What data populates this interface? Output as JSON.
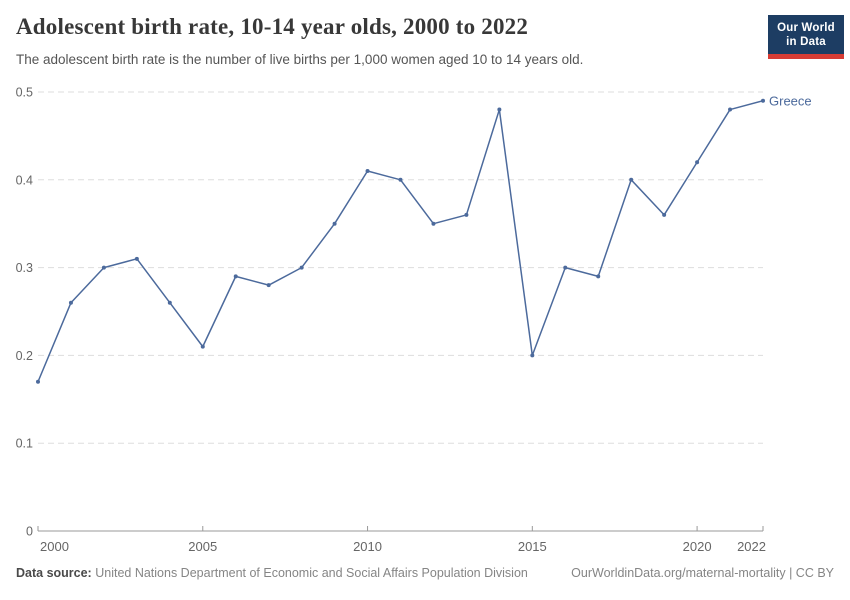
{
  "header": {
    "title": "Adolescent birth rate, 10-14 year olds, 2000 to 2022",
    "subtitle": "The adolescent birth rate is the number of live births per 1,000 women aged 10 to 14 years old.",
    "logo": {
      "line1": "Our World",
      "line2": "in Data",
      "bg_color": "#1d3d63",
      "bar_color": "#d73c34"
    }
  },
  "chart_data": {
    "type": "line",
    "title": "Adolescent birth rate, 10-14 year olds, 2000 to 2022",
    "xlabel": "",
    "ylabel": "",
    "xlim": [
      2000,
      2022
    ],
    "ylim": [
      0,
      0.5
    ],
    "x_ticks": [
      2000,
      2005,
      2010,
      2015,
      2020,
      2022
    ],
    "y_ticks": [
      0,
      0.1,
      0.2,
      0.3,
      0.4,
      0.5
    ],
    "grid": "horizontal-dashed",
    "legend_position": "end-of-line-label",
    "series": [
      {
        "name": "Greece",
        "color": "#4c6a9c",
        "x": [
          2000,
          2001,
          2002,
          2003,
          2004,
          2005,
          2006,
          2007,
          2008,
          2009,
          2010,
          2011,
          2012,
          2013,
          2014,
          2015,
          2016,
          2017,
          2018,
          2019,
          2020,
          2021,
          2022
        ],
        "values": [
          0.17,
          0.26,
          0.3,
          0.31,
          0.26,
          0.21,
          0.29,
          0.28,
          0.3,
          0.35,
          0.41,
          0.4,
          0.35,
          0.36,
          0.48,
          0.2,
          0.3,
          0.29,
          0.4,
          0.36,
          0.42,
          0.48,
          0.49
        ]
      }
    ],
    "style_colors": {
      "grid": "#dddddd",
      "axis": "#999999",
      "tick_text": "#666666"
    }
  },
  "footer": {
    "source_label": "Data source:",
    "source_text": "United Nations Department of Economic and Social Affairs Population Division",
    "link_text": "OurWorldinData.org/maternal-mortality | CC BY"
  }
}
